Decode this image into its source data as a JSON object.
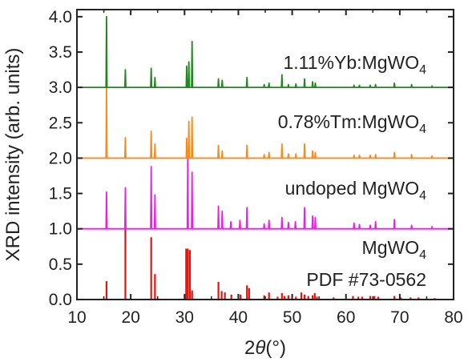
{
  "chart_data": {
    "type": "line",
    "xlabel_prefix": "2",
    "xlabel_theta": "θ",
    "xlabel_suffix": "(°)",
    "ylabel": "XRD intensity (arb. units)",
    "xlim": [
      10,
      80
    ],
    "ylim": [
      0,
      4.1
    ],
    "x_ticks": [
      10,
      20,
      30,
      40,
      50,
      60,
      70,
      80
    ],
    "x_tick_labels": [
      "10",
      "20",
      "30",
      "40",
      "50",
      "60",
      "70",
      "80"
    ],
    "y_ticks": [
      0,
      0.5,
      1.0,
      1.5,
      2.0,
      2.5,
      3.0,
      3.5,
      4.0
    ],
    "y_tick_labels": [
      "0.0",
      "0.5",
      "1.0",
      "1.5",
      "2.0",
      "2.5",
      "3.0",
      "3.5",
      "4.0"
    ],
    "grid": false,
    "series": [
      {
        "label_main": "MgWO",
        "label_sub": "4",
        "label_line2": "PDF #73-0562",
        "color": "#e8120c",
        "style": "sticks",
        "baseline": 0.0,
        "x": [
          15.5,
          19.0,
          23.8,
          24.5,
          30.3,
          30.6,
          31.0,
          31.4,
          36.3,
          36.9,
          37.5,
          38.7,
          40.4,
          41.6,
          42.0,
          44.8,
          45.7,
          47.3,
          48.1,
          48.6,
          49.3,
          50.7,
          51.7,
          52.3,
          53.0,
          53.8,
          54.2,
          54.6,
          57.7,
          61.3,
          62.3,
          63.0,
          64.5,
          65.3,
          66.0,
          69.0,
          70.2,
          72.0,
          73.5,
          76.5
        ],
        "y": [
          0.26,
          1.0,
          0.88,
          0.36,
          0.72,
          0.72,
          0.7,
          0.13,
          0.25,
          0.12,
          0.1,
          0.07,
          0.07,
          0.2,
          0.16,
          0.06,
          0.1,
          0.04,
          0.09,
          0.05,
          0.06,
          0.04,
          0.1,
          0.07,
          0.05,
          0.06,
          0.09,
          0.04,
          0.03,
          0.05,
          0.04,
          0.04,
          0.05,
          0.05,
          0.04,
          0.05,
          0.03,
          0.03,
          0.03,
          0.02
        ]
      },
      {
        "label_main": "undoped MgWO",
        "label_sub": "4",
        "color": "#ee1ee8",
        "style": "line",
        "baseline": 1.0,
        "x": [
          15.5,
          19.0,
          23.8,
          24.5,
          30.6,
          31.4,
          36.3,
          37.0,
          38.6,
          40.3,
          41.6,
          44.8,
          45.7,
          48.1,
          49.3,
          50.6,
          52.3,
          53.8,
          54.3,
          61.5,
          62.5,
          64.5,
          65.5,
          69.0,
          72.2,
          76.0
        ],
        "y": [
          1.52,
          1.58,
          1.88,
          1.48,
          2.01,
          1.8,
          1.32,
          1.25,
          1.1,
          1.12,
          1.3,
          1.07,
          1.12,
          1.16,
          1.09,
          1.1,
          1.3,
          1.18,
          1.16,
          1.08,
          1.06,
          1.05,
          1.1,
          1.13,
          1.05,
          1.03
        ]
      },
      {
        "label_main": "0.78%Tm:MgWO",
        "label_sub": "4",
        "color": "#f98a1c",
        "style": "line",
        "baseline": 2.0,
        "x": [
          15.5,
          19.0,
          23.8,
          24.5,
          30.4,
          30.8,
          31.4,
          36.3,
          37.0,
          41.6,
          44.8,
          45.7,
          48.1,
          49.3,
          50.7,
          52.3,
          53.8,
          54.3,
          61.5,
          62.5,
          64.5,
          65.5,
          69.0,
          72.2,
          76.0
        ],
        "y": [
          3.0,
          2.29,
          2.38,
          2.2,
          2.28,
          2.52,
          2.58,
          2.18,
          2.1,
          2.18,
          2.05,
          2.08,
          2.2,
          2.06,
          2.06,
          2.2,
          2.1,
          2.08,
          2.04,
          2.04,
          2.04,
          2.05,
          2.08,
          2.05,
          2.03
        ]
      },
      {
        "label_main": "1.11%Yb:MgWO",
        "label_sub": "4",
        "color": "#1e8a1e",
        "style": "line",
        "baseline": 3.0,
        "x": [
          15.5,
          19.0,
          23.8,
          24.5,
          30.4,
          30.8,
          31.4,
          36.3,
          37.0,
          41.6,
          44.8,
          45.7,
          48.1,
          49.3,
          50.7,
          52.3,
          53.8,
          54.3,
          61.5,
          62.5,
          64.5,
          65.5,
          69.0,
          72.2,
          76.0
        ],
        "y": [
          4.0,
          3.25,
          3.27,
          3.14,
          3.3,
          3.36,
          3.65,
          3.12,
          3.1,
          3.14,
          3.04,
          3.06,
          3.18,
          3.04,
          3.05,
          3.12,
          3.08,
          3.06,
          3.03,
          3.03,
          3.03,
          3.04,
          3.06,
          3.04,
          3.02
        ]
      }
    ]
  }
}
